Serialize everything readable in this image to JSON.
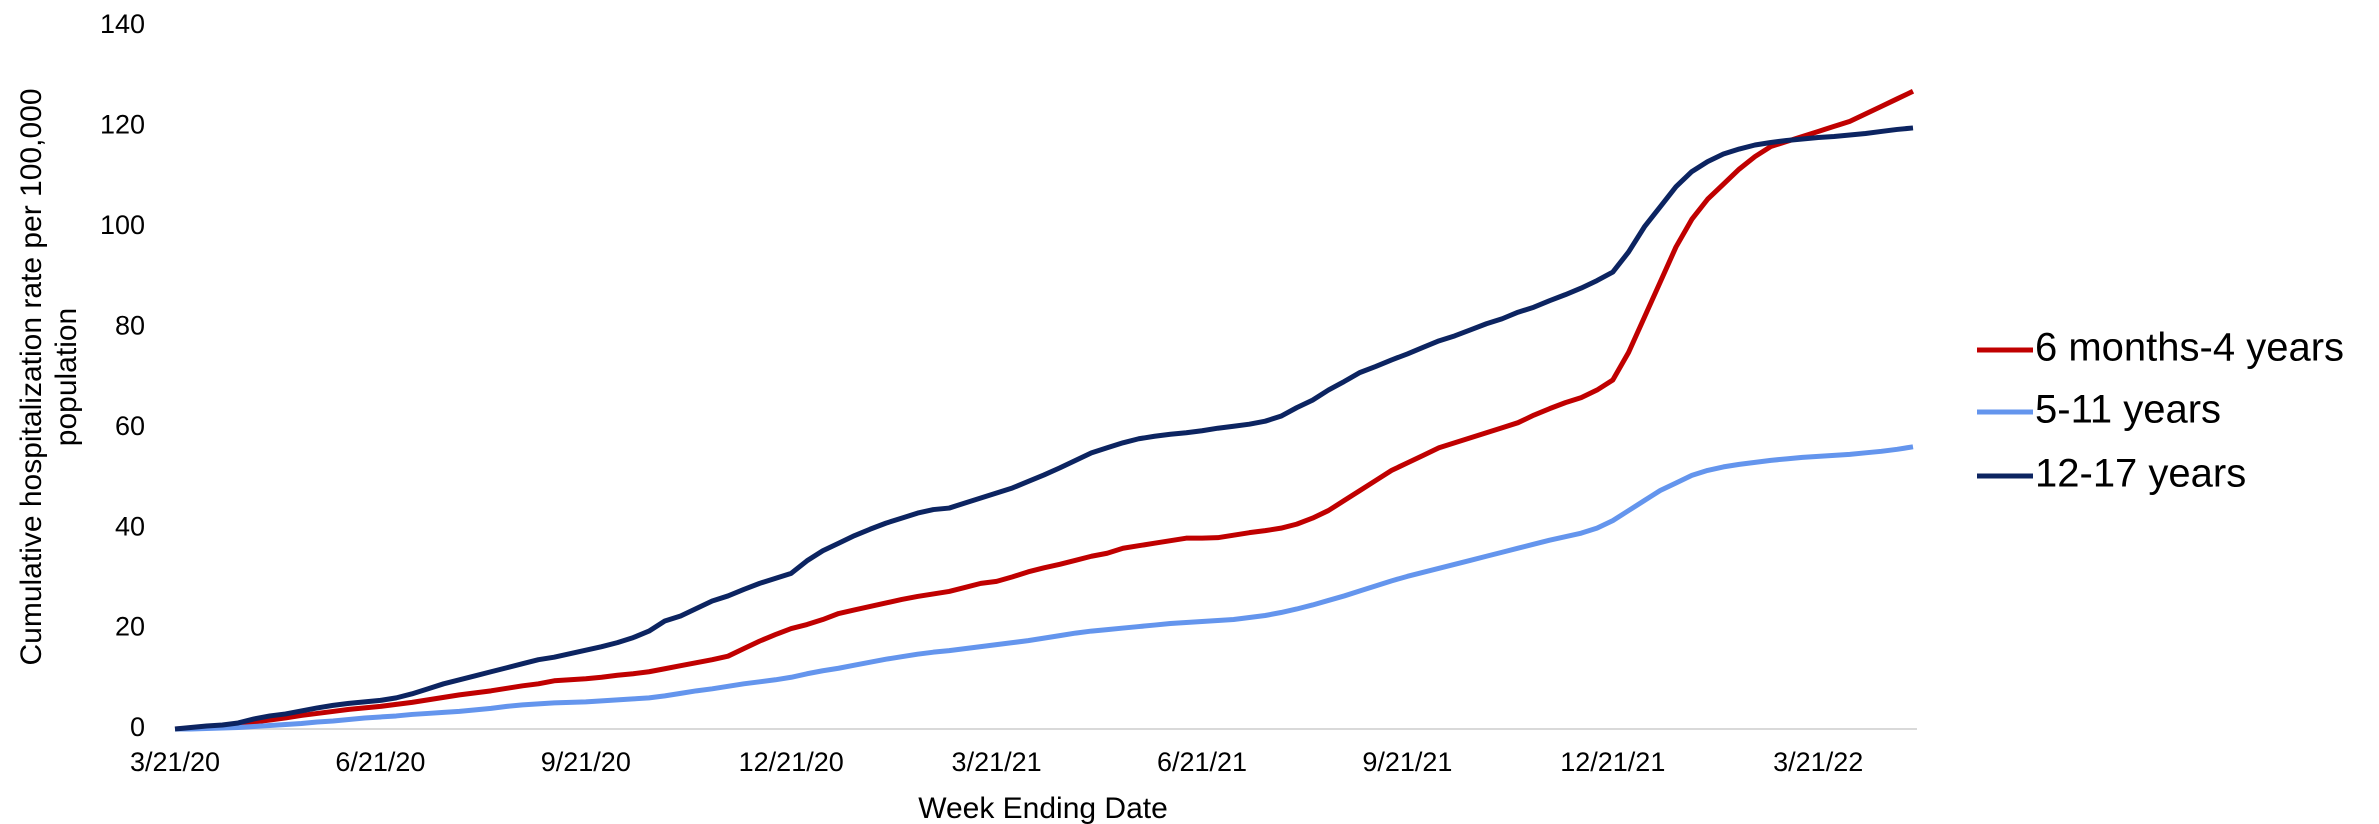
{
  "chart_data": {
    "type": "line",
    "x_label": "Week Ending Date",
    "y_label": [
      "Cumulative hospitalization rate per 100,000",
      "population"
    ],
    "categories": [
      "3/21/20",
      null,
      null,
      null,
      null,
      null,
      null,
      null,
      null,
      null,
      null,
      null,
      null,
      "6/21/20",
      null,
      null,
      null,
      null,
      null,
      null,
      null,
      null,
      null,
      null,
      null,
      null,
      "9/21/20",
      null,
      null,
      null,
      null,
      null,
      null,
      null,
      null,
      null,
      null,
      null,
      null,
      "12/21/20",
      null,
      null,
      null,
      null,
      null,
      null,
      null,
      null,
      null,
      null,
      null,
      null,
      "3/21/21",
      null,
      null,
      null,
      null,
      null,
      null,
      null,
      null,
      null,
      null,
      null,
      null,
      "6/21/21",
      null,
      null,
      null,
      null,
      null,
      null,
      null,
      null,
      null,
      null,
      null,
      null,
      "9/21/21",
      null,
      null,
      null,
      null,
      null,
      null,
      null,
      null,
      null,
      null,
      null,
      null,
      "12/21/21",
      null,
      null,
      null,
      null,
      null,
      null,
      null,
      null,
      null,
      null,
      null,
      null,
      "3/21/22",
      null,
      null,
      null,
      null,
      null,
      null
    ],
    "series": [
      {
        "name": "6 months-4 years",
        "color": "#c00000",
        "values": [
          0,
          0.1,
          0.3,
          0.6,
          1,
          1.4,
          1.8,
          2.2,
          2.7,
          3.1,
          3.5,
          3.9,
          4.2,
          4.5,
          4.9,
          5.3,
          5.8,
          6.3,
          6.8,
          7.2,
          7.6,
          8.1,
          8.6,
          9.0,
          9.6,
          9.8,
          10,
          10.3,
          10.7,
          11,
          11.4,
          12,
          12.6,
          13.2,
          13.8,
          14.5,
          16,
          17.5,
          18.8,
          20,
          20.8,
          21.8,
          23,
          23.7,
          24.4,
          25.1,
          25.8,
          26.4,
          26.9,
          27.4,
          28.2,
          29,
          29.4,
          30.3,
          31.3,
          32.1,
          32.8,
          33.6,
          34.4,
          35,
          36,
          36.5,
          37,
          37.5,
          38,
          38,
          38.1,
          38.6,
          39.1,
          39.5,
          40,
          40.8,
          42,
          43.5,
          45.5,
          47.5,
          49.5,
          51.5,
          53,
          54.5,
          56,
          57,
          58,
          59,
          60,
          61,
          62.5,
          63.8,
          65,
          66,
          67.5,
          69.5,
          75,
          82,
          89,
          96,
          101.5,
          105.5,
          108.5,
          111.5,
          114,
          116,
          117,
          118,
          119,
          120,
          121,
          122.5,
          124,
          125.5,
          127
        ]
      },
      {
        "name": "5-11 years",
        "color": "#6495ed",
        "values": [
          0,
          0,
          0.1,
          0.2,
          0.3,
          0.5,
          0.7,
          0.9,
          1.1,
          1.4,
          1.6,
          1.9,
          2.2,
          2.4,
          2.6,
          2.9,
          3.1,
          3.3,
          3.5,
          3.8,
          4.1,
          4.5,
          4.8,
          5,
          5.2,
          5.3,
          5.4,
          5.6,
          5.8,
          6,
          6.2,
          6.6,
          7.1,
          7.6,
          8,
          8.5,
          9,
          9.4,
          9.8,
          10.3,
          11,
          11.6,
          12.1,
          12.7,
          13.3,
          13.9,
          14.4,
          14.9,
          15.3,
          15.6,
          16,
          16.4,
          16.8,
          17.2,
          17.6,
          18.1,
          18.6,
          19.1,
          19.5,
          19.8,
          20.1,
          20.4,
          20.7,
          21,
          21.2,
          21.4,
          21.6,
          21.8,
          22.2,
          22.6,
          23.2,
          23.9,
          24.7,
          25.6,
          26.5,
          27.5,
          28.5,
          29.5,
          30.4,
          31.2,
          32,
          32.8,
          33.6,
          34.4,
          35.2,
          36,
          36.8,
          37.6,
          38.3,
          39,
          40,
          41.5,
          43.5,
          45.5,
          47.5,
          49,
          50.5,
          51.5,
          52.2,
          52.7,
          53.1,
          53.5,
          53.8,
          54.1,
          54.3,
          54.5,
          54.7,
          55,
          55.3,
          55.7,
          56.2
        ]
      },
      {
        "name": "12-17 years",
        "color": "#0c2461",
        "values": [
          0,
          0.3,
          0.6,
          0.8,
          1.2,
          2,
          2.6,
          3,
          3.6,
          4.2,
          4.7,
          5.1,
          5.4,
          5.7,
          6.2,
          7,
          8,
          9,
          9.8,
          10.6,
          11.4,
          12.2,
          13,
          13.8,
          14.3,
          15,
          15.7,
          16.4,
          17.2,
          18.2,
          19.5,
          21.5,
          22.5,
          24,
          25.5,
          26.5,
          27.8,
          29,
          30,
          31,
          33.5,
          35.5,
          37,
          38.5,
          39.8,
          41,
          42,
          43,
          43.7,
          44,
          45,
          46,
          47,
          48,
          49.3,
          50.6,
          52,
          53.5,
          55,
          56,
          57,
          57.8,
          58.3,
          58.7,
          59,
          59.4,
          59.9,
          60.3,
          60.7,
          61.3,
          62.3,
          64,
          65.5,
          67.5,
          69.2,
          71,
          72.2,
          73.5,
          74.7,
          76,
          77.3,
          78.3,
          79.5,
          80.7,
          81.7,
          83,
          84,
          85.3,
          86.5,
          87.8,
          89.3,
          91,
          95,
          100,
          104,
          108,
          111,
          113,
          114.5,
          115.5,
          116.3,
          116.8,
          117.2,
          117.5,
          117.8,
          118,
          118.3,
          118.6,
          119,
          119.4,
          119.7
        ]
      }
    ],
    "ylim": [
      0,
      140
    ],
    "yticks": [
      0,
      20,
      40,
      60,
      80,
      100,
      120,
      140
    ],
    "grid": false,
    "legend": "right"
  }
}
